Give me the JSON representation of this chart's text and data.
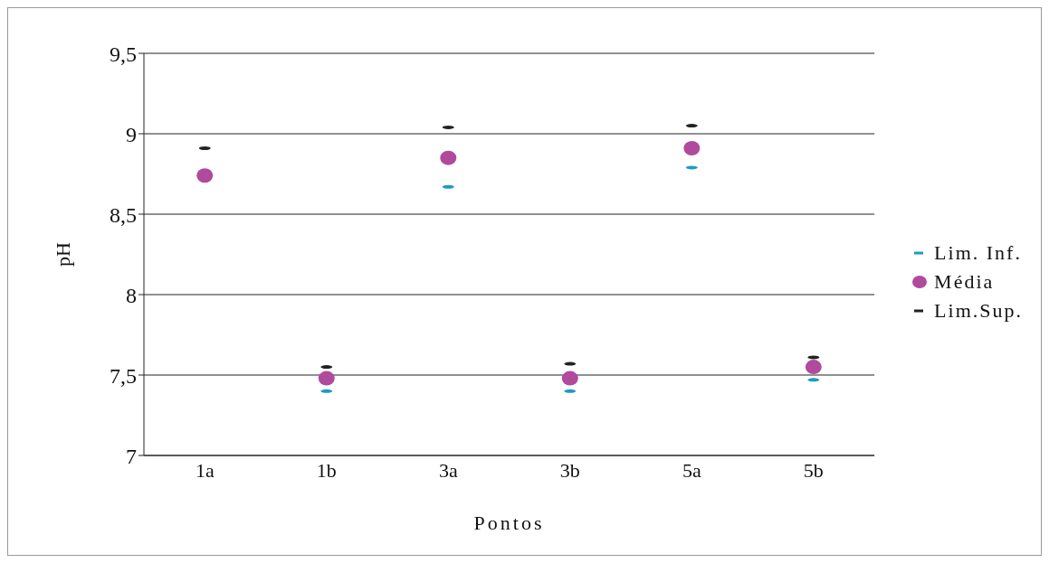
{
  "chart_data": {
    "type": "scatter",
    "xlabel": "Pontos",
    "ylabel": "pH",
    "categories": [
      "1a",
      "1b",
      "3a",
      "3b",
      "5a",
      "5b"
    ],
    "series": [
      {
        "name": "Lim. Inf.",
        "color": "#1a9cc4",
        "values": [
          null,
          7.4,
          8.67,
          7.4,
          8.79,
          7.47
        ]
      },
      {
        "name": "Média",
        "color": "#b04a9c",
        "marker": "circle",
        "values": [
          8.74,
          7.48,
          8.85,
          7.48,
          8.91,
          7.55
        ]
      },
      {
        "name": "Lim.Sup.",
        "color": "#222222",
        "values": [
          8.91,
          7.55,
          9.04,
          7.57,
          9.05,
          7.61
        ]
      }
    ],
    "ylim": [
      7,
      9.5
    ],
    "yticks": [
      7,
      {
        "value": 7.5,
        "label": "7,5"
      },
      8,
      {
        "value": 8.5,
        "label": "8,5"
      },
      9,
      {
        "value": 9.5,
        "label": "9,5"
      }
    ],
    "grid": "y",
    "legend": "right"
  }
}
